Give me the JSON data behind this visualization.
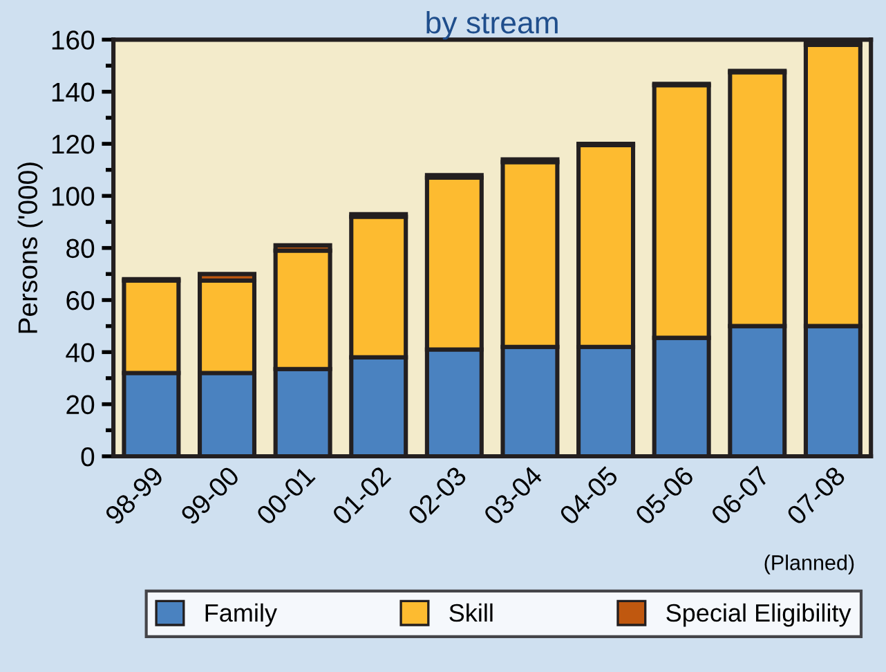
{
  "chart_data": {
    "type": "bar",
    "title": "by stream",
    "ylabel": "Persons ('000)",
    "categories": [
      "98-99",
      "99-00",
      "00-01",
      "01-02",
      "02-03",
      "03-04",
      "04-05",
      "05-06",
      "06-07",
      "07-08"
    ],
    "stacked": true,
    "series": [
      {
        "name": "Family",
        "color": "#4a82c0",
        "values": [
          32,
          32,
          33.5,
          38,
          41,
          42,
          42,
          45.5,
          50,
          50
        ]
      },
      {
        "name": "Skill",
        "color": "#fdbb30",
        "values": [
          35.5,
          35.5,
          45.5,
          54,
          66,
          71,
          77.5,
          97,
          97.5,
          108
        ]
      },
      {
        "name": "Special Eligibility",
        "color": "#c0580f",
        "values": [
          0.5,
          2.5,
          2,
          1,
          1,
          1,
          0.5,
          0.5,
          0.5,
          1
        ]
      }
    ],
    "ylim": [
      0,
      160
    ],
    "yticks": [
      0,
      20,
      40,
      60,
      80,
      100,
      120,
      140,
      160
    ],
    "annotations": [
      "(Planned)"
    ],
    "legend": "bottom",
    "grid": false
  }
}
